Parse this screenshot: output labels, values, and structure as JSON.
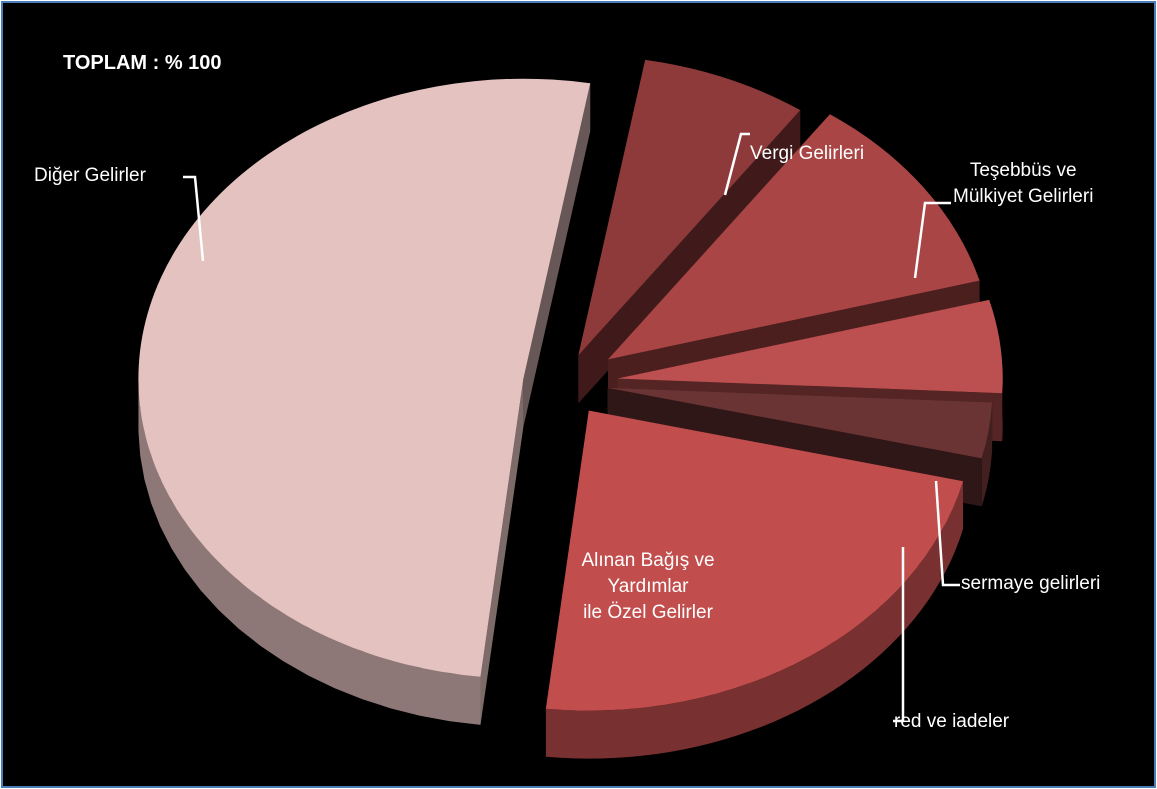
{
  "chart_data": {
    "type": "pie",
    "title": "TOPLAM : % 100",
    "style": "3d-exploded",
    "label_color": "#ffffff",
    "background": "#000000",
    "slices": [
      {
        "label": "Vergi Gelirleri",
        "value": 7,
        "color": "#8e3a3a"
      },
      {
        "label": "Teşebbüs ve\nMülkiyet Gelirleri",
        "value": 11,
        "color": "#a94545"
      },
      {
        "label": "sermaye gelirleri",
        "value": 5,
        "color": "#bc4f4f"
      },
      {
        "label": "red ve iadeler",
        "value": 3,
        "color": "#6b3434"
      },
      {
        "label": "Alınan Bağış ve\nYardımlar\nile Özel Gelirler",
        "value": 23,
        "color": "#c24d4d"
      },
      {
        "label": "Diğer Gelirler",
        "value": 51,
        "color": "#e4c2c0"
      }
    ]
  }
}
